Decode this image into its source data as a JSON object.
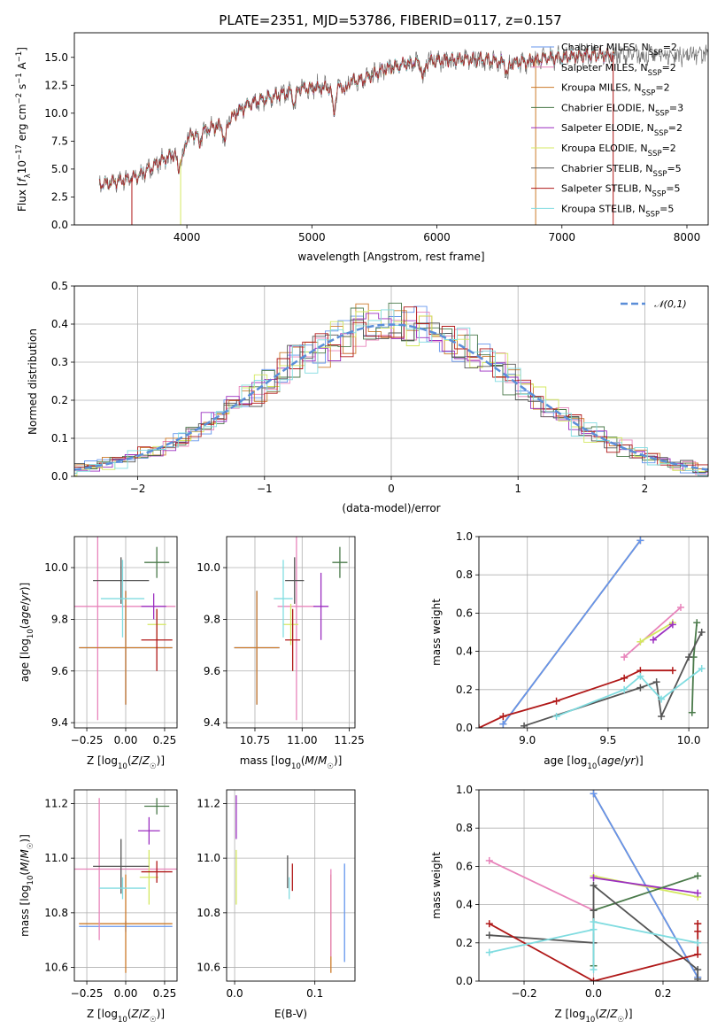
{
  "figure_title": "PLATE=2351, MJD=53786, FIBERID=0117, z=0.157",
  "colors": {
    "Chabrier MILES": "#6495ed",
    "Salpeter MILES": "#e884bb",
    "Kroupa MILES": "#cc7a2a",
    "Chabrier ELODIE": "#4a7a4a",
    "Salpeter ELODIE": "#9b2ec0",
    "Kroupa ELODIE": "#d4e860",
    "Chabrier STELIB": "#555555",
    "Salpeter STELIB": "#b01818",
    "Kroupa STELIB": "#80dce0",
    "gaussian": "#5b8ed8",
    "data": "#707070"
  },
  "chart_data": [
    {
      "id": "spectrum",
      "type": "line",
      "xlabel": "wavelength [Angstrom, rest frame]",
      "ylabel": "Flux [f_λ 10^-17 erg cm^-2 s^-1 A^-1]",
      "ylabel_parts": [
        "Flux [",
        "f",
        "λ",
        "10",
        "−17",
        " erg cm",
        "−2",
        " s",
        "−1",
        " A",
        "−1",
        "]"
      ],
      "xlim": [
        3100,
        8170
      ],
      "ylim": [
        0,
        17.2
      ],
      "xticks": [
        4000,
        5000,
        6000,
        7000,
        8000
      ],
      "yticks": [
        0.0,
        2.5,
        5.0,
        7.5,
        10.0,
        12.5,
        15.0
      ],
      "ytick_labels": [
        "0.0",
        "2.5",
        "5.0",
        "7.5",
        "10.0",
        "12.5",
        "15.0"
      ],
      "grid": false,
      "legend_placement": "upper right",
      "legend": [
        {
          "pre": "Chabrier MILES, N",
          "sub": "SSP",
          "post": "=2",
          "series": "Chabrier MILES"
        },
        {
          "pre": "Salpeter MILES, N",
          "sub": "SSP",
          "post": "=2",
          "series": "Salpeter MILES"
        },
        {
          "pre": "Kroupa MILES, N",
          "sub": "SSP",
          "post": "=2",
          "series": "Kroupa MILES"
        },
        {
          "pre": "Chabrier ELODIE, N",
          "sub": "SSP",
          "post": "=3",
          "series": "Chabrier ELODIE"
        },
        {
          "pre": "Salpeter ELODIE, N",
          "sub": "SSP",
          "post": "=2",
          "series": "Salpeter ELODIE"
        },
        {
          "pre": "Kroupa ELODIE, N",
          "sub": "SSP",
          "post": "=2",
          "series": "Kroupa ELODIE"
        },
        {
          "pre": "Chabrier STELIB, N",
          "sub": "SSP",
          "post": "=5",
          "series": "Chabrier STELIB"
        },
        {
          "pre": "Salpeter STELIB, N",
          "sub": "SSP",
          "post": "=5",
          "series": "Salpeter STELIB"
        },
        {
          "pre": "Kroupa STELIB, N",
          "sub": "SSP",
          "post": "=5",
          "series": "Kroupa STELIB"
        }
      ],
      "continuum": [
        [
          3300,
          3.6
        ],
        [
          3450,
          3.9
        ],
        [
          3600,
          4.3
        ],
        [
          3700,
          5.0
        ],
        [
          3800,
          5.8
        ],
        [
          3900,
          6.3
        ],
        [
          4000,
          7.8
        ],
        [
          4100,
          8.4
        ],
        [
          4200,
          8.7
        ],
        [
          4300,
          9.0
        ],
        [
          4400,
          10.0
        ],
        [
          4500,
          10.8
        ],
        [
          4600,
          11.2
        ],
        [
          4700,
          11.5
        ],
        [
          4800,
          11.8
        ],
        [
          4900,
          12.2
        ],
        [
          5000,
          12.3
        ],
        [
          5100,
          12.3
        ],
        [
          5200,
          12.2
        ],
        [
          5300,
          12.9
        ],
        [
          5400,
          13.0
        ],
        [
          5500,
          13.5
        ],
        [
          5600,
          14.0
        ],
        [
          5700,
          14.3
        ],
        [
          5800,
          14.5
        ],
        [
          5900,
          14.6
        ],
        [
          6000,
          14.7
        ],
        [
          6100,
          14.8
        ],
        [
          6200,
          14.8
        ],
        [
          6300,
          14.8
        ],
        [
          6400,
          14.8
        ],
        [
          6500,
          14.6
        ],
        [
          6600,
          14.5
        ],
        [
          6700,
          14.6
        ],
        [
          6800,
          14.8
        ],
        [
          6900,
          15.0
        ],
        [
          7000,
          15.0
        ],
        [
          7100,
          15.1
        ],
        [
          7200,
          15.2
        ],
        [
          7300,
          15.2
        ],
        [
          7400,
          15.2
        ]
      ],
      "absorption_dips": [
        [
          3933,
          1.8
        ],
        [
          3968,
          1.5
        ],
        [
          4102,
          1.2
        ],
        [
          4304,
          1.6
        ],
        [
          4861,
          1.2
        ],
        [
          5175,
          2.2
        ],
        [
          5270,
          0.8
        ],
        [
          5890,
          1.5
        ],
        [
          6563,
          1.0
        ]
      ],
      "data_extent": [
        3300,
        8170
      ],
      "model_extent": [
        3300,
        7420
      ],
      "model_dropouts": [
        3560,
        3950,
        6790,
        7410
      ],
      "noise_amplitude": 0.55
    },
    {
      "id": "residuals",
      "type": "histogram",
      "xlabel": "(data-model)/error",
      "ylabel": "Normed distribution",
      "xlim": [
        -2.5,
        2.5
      ],
      "ylim": [
        0,
        0.5
      ],
      "xticks": [
        -2,
        -1,
        0,
        1,
        2
      ],
      "xtick_labels": [
        "−2",
        "−1",
        "0",
        "1",
        "2"
      ],
      "yticks": [
        0.0,
        0.1,
        0.2,
        0.3,
        0.4,
        0.5
      ],
      "ytick_labels": [
        "0.0",
        "0.1",
        "0.2",
        "0.3",
        "0.4",
        "0.5"
      ],
      "grid": true,
      "legend_placement": "upper right",
      "legend_label": "𝒩(0,1)",
      "bin_width": 0.1,
      "bin_range": [
        -2.5,
        2.5
      ]
    },
    {
      "id": "age-vs-Z",
      "type": "errorbar",
      "xlabel": "Z [log10(Z/Z☉)]",
      "ylabel": "age [log10(age/yr)]",
      "xlim": [
        -0.33,
        0.33
      ],
      "ylim": [
        9.38,
        10.12
      ],
      "xticks": [
        -0.25,
        0.0,
        0.25
      ],
      "xtick_labels": [
        "−0.25",
        "0.00",
        "0.25"
      ],
      "yticks": [
        9.4,
        9.6,
        9.8,
        10.0
      ],
      "ytick_labels": [
        "9.4",
        "9.6",
        "9.8",
        "10.0"
      ],
      "grid": true,
      "points": [
        {
          "series": "Chabrier MILES",
          "x": 0.0,
          "xerr": 0.3,
          "y": 9.69,
          "yerr": 0.22
        },
        {
          "series": "Salpeter MILES",
          "x": -0.18,
          "xerr": 0.5,
          "y": 9.85,
          "yerr": 0.44
        },
        {
          "series": "Kroupa MILES",
          "x": 0.0,
          "xerr": 0.3,
          "y": 9.69,
          "yerr": 0.22
        },
        {
          "series": "Chabrier ELODIE",
          "x": 0.2,
          "xerr": 0.08,
          "y": 10.02,
          "yerr": 0.06
        },
        {
          "series": "Salpeter ELODIE",
          "x": 0.18,
          "xerr": 0.08,
          "y": 9.85,
          "yerr": 0.05
        },
        {
          "series": "Kroupa ELODIE",
          "x": 0.2,
          "xerr": 0.06,
          "y": 9.78,
          "yerr": 0.06
        },
        {
          "series": "Chabrier STELIB",
          "x": -0.03,
          "xerr": 0.18,
          "y": 9.95,
          "yerr": 0.09
        },
        {
          "series": "Salpeter STELIB",
          "x": 0.2,
          "xerr": 0.1,
          "y": 9.72,
          "yerr": 0.12
        },
        {
          "series": "Kroupa STELIB",
          "x": -0.02,
          "xerr": 0.14,
          "y": 9.88,
          "yerr": 0.15
        }
      ]
    },
    {
      "id": "age-vs-mass",
      "type": "errorbar",
      "xlabel": "mass [log10(M/M☉)]",
      "xlim": [
        10.6,
        11.28
      ],
      "ylim": [
        9.38,
        10.12
      ],
      "xticks": [
        10.75,
        11.0,
        11.25
      ],
      "xtick_labels": [
        "10.75",
        "11.00",
        "11.25"
      ],
      "yticks": [
        9.4,
        9.6,
        9.8,
        10.0
      ],
      "ytick_labels": [
        "9.4",
        "9.6",
        "9.8",
        "10.0"
      ],
      "grid": true,
      "points": [
        {
          "series": "Chabrier MILES",
          "x": 10.76,
          "xerr": 0.12,
          "y": 9.69,
          "yerr": 0.22
        },
        {
          "series": "Salpeter MILES",
          "x": 10.97,
          "xerr": 0.1,
          "y": 9.85,
          "yerr": 0.44
        },
        {
          "series": "Kroupa MILES",
          "x": 10.76,
          "xerr": 0.12,
          "y": 9.69,
          "yerr": 0.22
        },
        {
          "series": "Chabrier ELODIE",
          "x": 11.2,
          "xerr": 0.04,
          "y": 10.02,
          "yerr": 0.06
        },
        {
          "series": "Salpeter ELODIE",
          "x": 11.1,
          "xerr": 0.04,
          "y": 9.85,
          "yerr": 0.13
        },
        {
          "series": "Kroupa ELODIE",
          "x": 10.94,
          "xerr": 0.04,
          "y": 9.78,
          "yerr": 0.08
        },
        {
          "series": "Chabrier STELIB",
          "x": 10.96,
          "xerr": 0.05,
          "y": 9.95,
          "yerr": 0.09
        },
        {
          "series": "Salpeter STELIB",
          "x": 10.95,
          "xerr": 0.04,
          "y": 9.72,
          "yerr": 0.12
        },
        {
          "series": "Kroupa STELIB",
          "x": 10.9,
          "xerr": 0.05,
          "y": 9.88,
          "yerr": 0.15
        }
      ]
    },
    {
      "id": "massweight-vs-age",
      "type": "line",
      "xlabel": "age [log10(age/yr)]",
      "ylabel": "mass weight",
      "xlim": [
        8.7,
        10.12
      ],
      "ylim": [
        0,
        1.0
      ],
      "xticks": [
        9.0,
        9.5,
        10.0
      ],
      "xtick_labels": [
        "9.0",
        "9.5",
        "10.0"
      ],
      "yticks": [
        0.0,
        0.2,
        0.4,
        0.6,
        0.8,
        1.0
      ],
      "ytick_labels": [
        "0.0",
        "0.2",
        "0.4",
        "0.6",
        "0.8",
        "1.0"
      ],
      "grid": true,
      "series": [
        {
          "name": "Kroupa MILES",
          "x": [
            8.85,
            9.7
          ],
          "y": [
            0.02,
            0.98
          ]
        },
        {
          "name": "Chabrier MILES",
          "x": [
            8.85,
            9.7
          ],
          "y": [
            0.02,
            0.98
          ]
        },
        {
          "name": "Salpeter MILES",
          "x": [
            9.6,
            9.95
          ],
          "y": [
            0.37,
            0.63
          ]
        },
        {
          "name": "Kroupa ELODIE",
          "x": [
            9.7,
            9.9
          ],
          "y": [
            0.45,
            0.55
          ]
        },
        {
          "name": "Salpeter ELODIE",
          "x": [
            9.78,
            9.9
          ],
          "y": [
            0.46,
            0.54
          ]
        },
        {
          "name": "Chabrier ELODIE",
          "x": [
            10.02,
            10.03,
            10.05
          ],
          "y": [
            0.08,
            0.37,
            0.55
          ]
        },
        {
          "name": "Chabrier STELIB",
          "x": [
            8.98,
            9.7,
            9.8,
            9.83,
            10.0,
            10.08
          ],
          "y": [
            0.01,
            0.21,
            0.24,
            0.06,
            0.37,
            0.5
          ]
        },
        {
          "name": "Salpeter STELIB",
          "x": [
            8.7,
            8.85,
            9.18,
            9.6,
            9.7,
            9.9
          ],
          "y": [
            0.0,
            0.06,
            0.14,
            0.26,
            0.3,
            0.3
          ]
        },
        {
          "name": "Kroupa STELIB",
          "x": [
            9.18,
            9.6,
            9.7,
            9.83,
            10.08
          ],
          "y": [
            0.06,
            0.2,
            0.27,
            0.15,
            0.31
          ]
        }
      ]
    },
    {
      "id": "mass-vs-Z",
      "type": "errorbar",
      "xlabel": "Z [log10(Z/Z☉)]",
      "ylabel": "mass [log10(M/M☉)]",
      "xlim": [
        -0.33,
        0.33
      ],
      "ylim": [
        10.55,
        11.25
      ],
      "xticks": [
        -0.25,
        0.0,
        0.25
      ],
      "xtick_labels": [
        "−0.25",
        "0.00",
        "0.25"
      ],
      "yticks": [
        10.6,
        10.8,
        11.0,
        11.2
      ],
      "ytick_labels": [
        "10.6",
        "10.8",
        "11.0",
        "11.2"
      ],
      "grid": true,
      "points": [
        {
          "series": "Chabrier MILES",
          "x": 0.0,
          "xerr": 0.3,
          "y": 10.75,
          "yerr": 0.02
        },
        {
          "series": "Kroupa MILES",
          "x": 0.0,
          "xerr": 0.3,
          "y": 10.76,
          "yerr": 0.18
        },
        {
          "series": "Salpeter MILES",
          "x": -0.17,
          "xerr": 0.5,
          "y": 10.96,
          "yerr": 0.26
        },
        {
          "series": "Chabrier ELODIE",
          "x": 0.2,
          "xerr": 0.08,
          "y": 11.19,
          "yerr": 0.03
        },
        {
          "series": "Salpeter ELODIE",
          "x": 0.15,
          "xerr": 0.07,
          "y": 11.1,
          "yerr": 0.05
        },
        {
          "series": "Kroupa ELODIE",
          "x": 0.15,
          "xerr": 0.06,
          "y": 10.93,
          "yerr": 0.1
        },
        {
          "series": "Chabrier STELIB",
          "x": -0.03,
          "xerr": 0.18,
          "y": 10.97,
          "yerr": 0.1
        },
        {
          "series": "Salpeter STELIB",
          "x": 0.2,
          "xerr": 0.1,
          "y": 10.95,
          "yerr": 0.04
        },
        {
          "series": "Kroupa STELIB",
          "x": -0.02,
          "xerr": 0.15,
          "y": 10.89,
          "yerr": 0.04
        }
      ]
    },
    {
      "id": "mass-vs-ebv",
      "type": "errorbar",
      "xlabel": "E(B-V)",
      "xlim": [
        -0.01,
        0.15
      ],
      "ylim": [
        10.55,
        11.25
      ],
      "xticks": [
        0.0,
        0.1
      ],
      "xtick_labels": [
        "0.0",
        "0.1"
      ],
      "yticks": [
        10.6,
        10.8,
        11.0,
        11.2
      ],
      "ytick_labels": [
        "10.6",
        "10.8",
        "11.0",
        "11.2"
      ],
      "grid": true,
      "points": [
        {
          "series": "Chabrier MILES",
          "x": 0.137,
          "xerr": 0,
          "y": 10.8,
          "yerr": 0.18
        },
        {
          "series": "Kroupa MILES",
          "x": 0.12,
          "xerr": 0,
          "y": 10.76,
          "yerr": 0.18
        },
        {
          "series": "Salpeter MILES",
          "x": 0.12,
          "xerr": 0,
          "y": 10.8,
          "yerr": 0.16
        },
        {
          "series": "Salpeter ELODIE",
          "x": 0.002,
          "xerr": 0,
          "y": 11.15,
          "yerr": 0.08
        },
        {
          "series": "Kroupa ELODIE",
          "x": 0.002,
          "xerr": 0,
          "y": 10.93,
          "yerr": 0.1
        },
        {
          "series": "Chabrier STELIB",
          "x": 0.066,
          "xerr": 0,
          "y": 10.95,
          "yerr": 0.06
        },
        {
          "series": "Salpeter STELIB",
          "x": 0.072,
          "xerr": 0,
          "y": 10.93,
          "yerr": 0.05
        },
        {
          "series": "Kroupa STELIB",
          "x": 0.068,
          "xerr": 0,
          "y": 10.89,
          "yerr": 0.04
        }
      ]
    },
    {
      "id": "massweight-vs-Z",
      "type": "line",
      "xlabel": "Z [log10(Z/Z☉)]",
      "ylabel": "mass weight",
      "xlim": [
        -0.33,
        0.33
      ],
      "ylim": [
        0,
        1.0
      ],
      "xticks": [
        -0.2,
        0.0,
        0.2
      ],
      "xtick_labels": [
        "−0.2",
        "0.0",
        "0.2"
      ],
      "yticks": [
        0.0,
        0.2,
        0.4,
        0.6,
        0.8,
        1.0
      ],
      "ytick_labels": [
        "0.0",
        "0.2",
        "0.4",
        "0.6",
        "0.8",
        "1.0"
      ],
      "grid": true,
      "series": [
        {
          "name": "Kroupa MILES",
          "x": [
            0.0,
            0.3
          ],
          "y": [
            0.98,
            0.02
          ]
        },
        {
          "name": "Chabrier MILES",
          "x": [
            0.0,
            0.3
          ],
          "y": [
            0.98,
            0.02
          ]
        },
        {
          "name": "Salpeter MILES",
          "x": [
            -0.3,
            0.0
          ],
          "y": [
            0.63,
            0.37
          ]
        },
        {
          "name": "Kroupa ELODIE",
          "x": [
            0.0,
            0.3
          ],
          "y": [
            0.55,
            0.44
          ]
        },
        {
          "name": "Salpeter ELODIE",
          "x": [
            0.0,
            0.3
          ],
          "y": [
            0.54,
            0.46
          ]
        },
        {
          "name": "Chabrier ELODIE",
          "x": [
            0.0,
            0.0,
            0.3
          ],
          "y": [
            0.08,
            0.37,
            0.55
          ]
        },
        {
          "name": "Chabrier STELIB",
          "x": [
            -0.3,
            0.0,
            0.0,
            0.0,
            0.3,
            0.3
          ],
          "y": [
            0.24,
            0.2,
            0.37,
            0.5,
            0.06,
            0.01
          ]
        },
        {
          "name": "Salpeter STELIB",
          "x": [
            -0.3,
            0.0,
            0.3,
            0.3,
            0.3,
            0.3
          ],
          "y": [
            0.3,
            0.0,
            0.14,
            0.26,
            0.3,
            0.3
          ]
        },
        {
          "name": "Kroupa STELIB",
          "x": [
            -0.3,
            0.0,
            0.0,
            0.0,
            0.3
          ],
          "y": [
            0.15,
            0.27,
            0.06,
            0.31,
            0.2
          ]
        }
      ]
    }
  ]
}
